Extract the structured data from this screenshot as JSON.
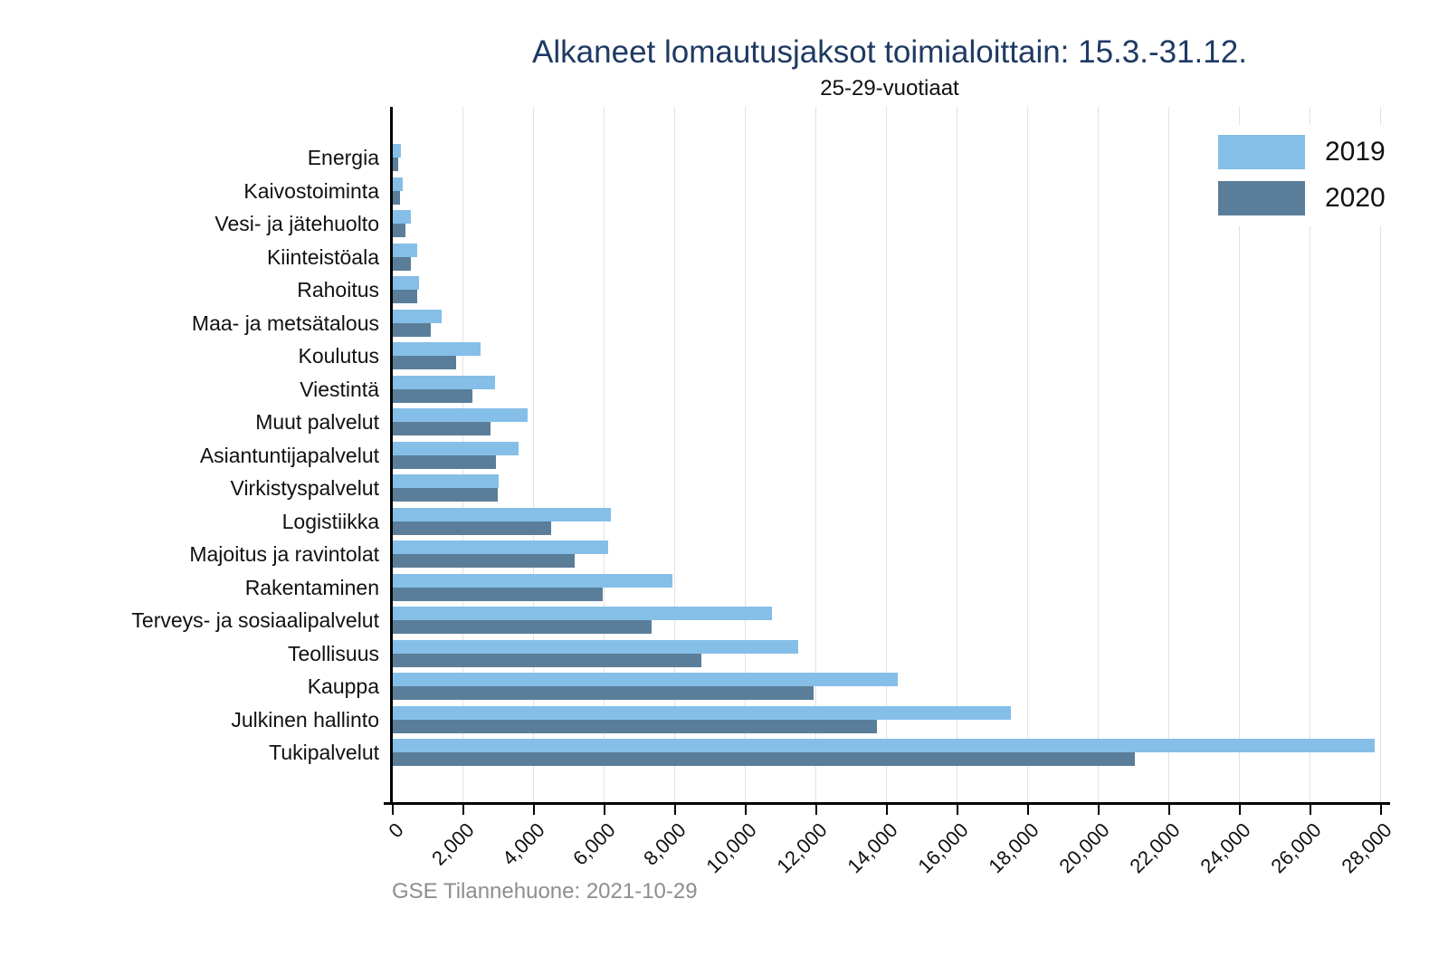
{
  "title": "Alkaneet lomautusjaksot toimialoittain: 15.3.-31.12.",
  "subtitle": "25-29-vuotiaat",
  "footer": "GSE Tilannehuone: 2021-10-29",
  "colors": {
    "series_2019": "#85bfe8",
    "series_2020": "#5a7e99",
    "title_text": "#1f3a63",
    "gridline": "#e2e2e2",
    "footer_text": "#8e8e8e"
  },
  "legend": {
    "items": [
      {
        "label": "2019",
        "color": "#85bfe8"
      },
      {
        "label": "2020",
        "color": "#5a7e99"
      }
    ]
  },
  "chart_data": {
    "type": "bar",
    "orientation": "horizontal",
    "title": "Alkaneet lomautusjaksot toimialoittain: 15.3.-31.12.",
    "subtitle": "25-29-vuotiaat",
    "xlabel": "",
    "ylabel": "",
    "grid": "vertical",
    "legend_position": "top-right",
    "xlim": [
      0,
      28205
    ],
    "x_ticks": [
      0,
      2000,
      4000,
      6000,
      8000,
      10000,
      12000,
      14000,
      16000,
      18000,
      20000,
      22000,
      24000,
      26000,
      28000
    ],
    "x_tick_labels": [
      "0",
      "2,000",
      "4,000",
      "6,000",
      "8,000",
      "10,000",
      "12,000",
      "14,000",
      "16,000",
      "18,000",
      "20,000",
      "22,000",
      "24,000",
      "26,000",
      "28,000"
    ],
    "categories": [
      "Energia",
      "Kaivostoiminta",
      "Vesi- ja jätehuolto",
      "Kiinteistöala",
      "Rahoitus",
      "Maa- ja metsätalous",
      "Koulutus",
      "Viestintä",
      "Muut palvelut",
      "Asiantuntijapalvelut",
      "Virkistyspalvelut",
      "Logistiikka",
      "Majoitus ja ravintolat",
      "Rakentaminen",
      "Terveys- ja sosiaalipalvelut",
      "Teollisuus",
      "Kauppa",
      "Julkinen hallinto",
      "Tukipalvelut"
    ],
    "series": [
      {
        "name": "2019",
        "color": "#85bfe8",
        "values": [
          250,
          300,
          530,
          720,
          760,
          1410,
          2510,
          2930,
          3850,
          3600,
          3030,
          6200,
          6140,
          7960,
          10780,
          11520,
          14330,
          17540,
          27850
        ]
      },
      {
        "name": "2020",
        "color": "#5a7e99",
        "values": [
          170,
          230,
          390,
          540,
          720,
          1090,
          1820,
          2270,
          2800,
          2950,
          3000,
          4520,
          5190,
          5970,
          7350,
          8780,
          11960,
          13750,
          21060
        ]
      }
    ]
  }
}
